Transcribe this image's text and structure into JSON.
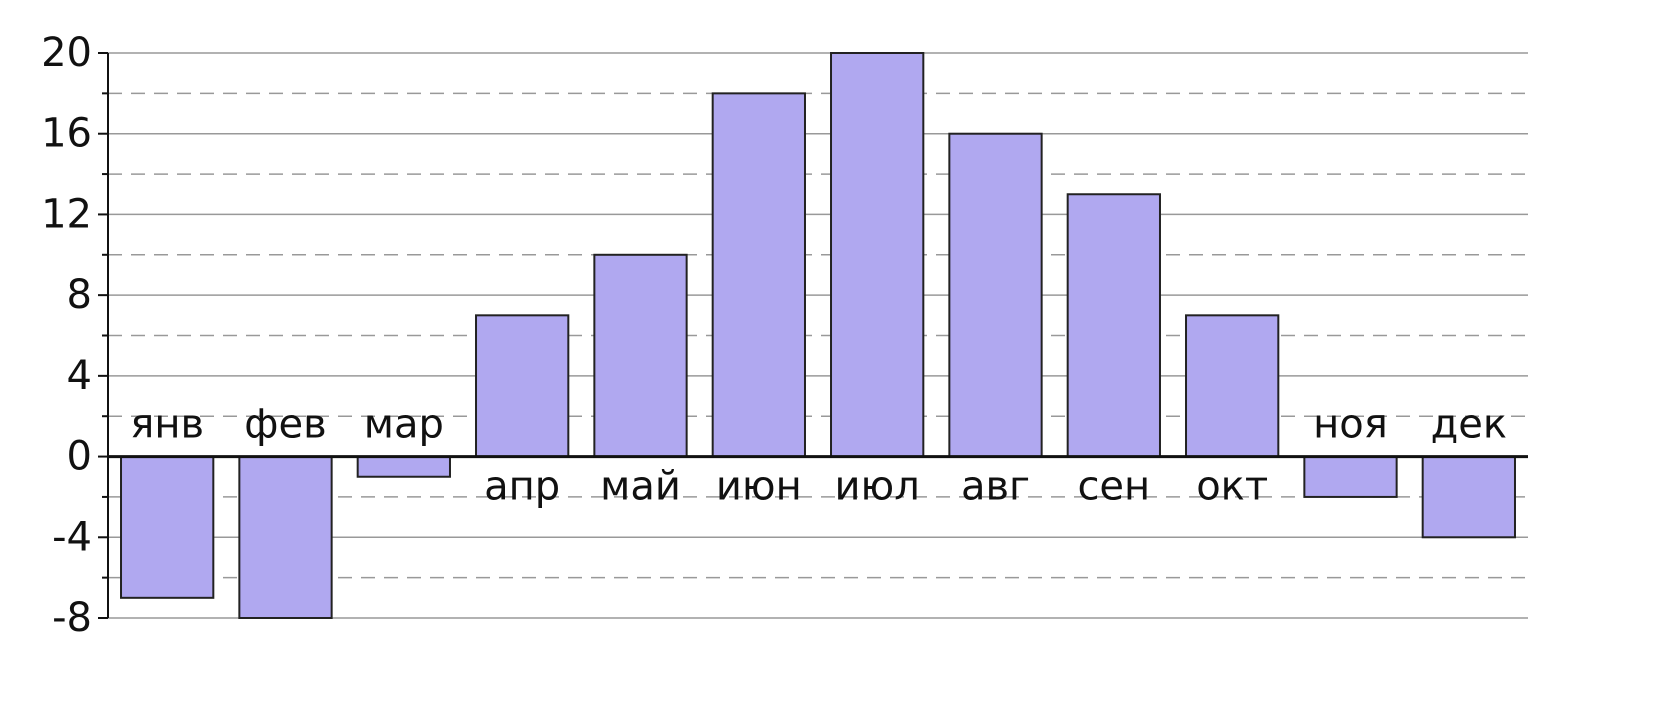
{
  "chart_data": {
    "type": "bar",
    "categories": [
      "янв",
      "фев",
      "мар",
      "апр",
      "май",
      "июн",
      "июл",
      "авг",
      "сен",
      "окт",
      "ноя",
      "дек"
    ],
    "values": [
      -7,
      -8,
      -1,
      7,
      10,
      18,
      20,
      16,
      13,
      7,
      -2,
      -4
    ],
    "color": "#b0a8f0",
    "ylim": [
      -8,
      20
    ],
    "yticks": [
      -8,
      -4,
      0,
      4,
      8,
      12,
      16,
      20
    ],
    "minor_yticks": [
      -6,
      -2,
      2,
      6,
      10,
      14,
      18
    ],
    "grid": true
  }
}
